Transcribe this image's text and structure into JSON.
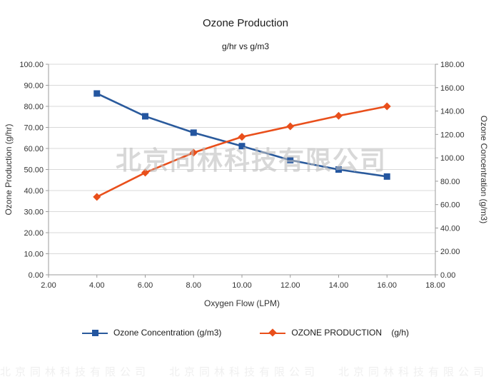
{
  "chart": {
    "title": "Ozone Production",
    "subtitle": "g/hr vs g/m3"
  },
  "watermark": "北京同林科技有限公司",
  "colors": {
    "grid": "#d9d9d9",
    "axis": "#9b9b9b",
    "text": "#333333",
    "watermark": "#bfbfbf",
    "series_blue": "#2A5A9C",
    "series_orange": "#E94F1B"
  },
  "chart_data": {
    "type": "line",
    "title": "Ozone Production",
    "subtitle": "g/hr vs g/m3",
    "xlabel": "Oxygen Flow (LPM)",
    "grid": true,
    "legend_position": "bottom",
    "x_axis": {
      "min": 2,
      "max": 18,
      "ticks": [
        "2.00",
        "4.00",
        "6.00",
        "8.00",
        "10.00",
        "12.00",
        "14.00",
        "16.00",
        "18.00"
      ]
    },
    "left_axis": {
      "label": "Ozone Production (g/hr)",
      "min": 0,
      "max": 100,
      "ticks": [
        "0.00",
        "10.00",
        "20.00",
        "30.00",
        "40.00",
        "50.00",
        "60.00",
        "70.00",
        "80.00",
        "90.00",
        "100.00"
      ]
    },
    "right_axis": {
      "label": "Ozone Concentration (g/m3)",
      "min": 0,
      "max": 180,
      "ticks": [
        "0.00",
        "20.00",
        "40.00",
        "60.00",
        "80.00",
        "100.00",
        "120.00",
        "140.00",
        "160.00",
        "180.00"
      ]
    },
    "x": [
      4,
      6,
      8,
      10,
      12,
      14,
      16
    ],
    "series": [
      {
        "name": "Ozone Concentration (g/m3)",
        "axis": "right",
        "marker": "square",
        "color": "#2A5A9C",
        "marker_color": "#2456A0",
        "values": [
          155,
          135.5,
          121.5,
          110,
          98,
          90,
          84
        ]
      },
      {
        "name": "OZONE PRODUCTION    (g/h)",
        "axis": "left",
        "marker": "diamond",
        "color": "#E94F1B",
        "marker_color": "#E94F1B",
        "values": [
          37,
          48.5,
          58,
          65.5,
          70.5,
          75.5,
          80
        ]
      }
    ]
  }
}
